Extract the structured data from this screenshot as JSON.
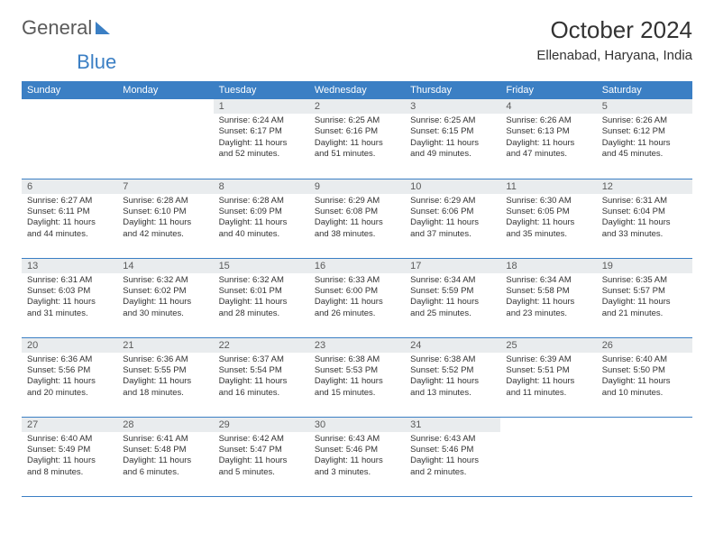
{
  "logo": {
    "part1": "General",
    "part2": "Blue"
  },
  "title": "October 2024",
  "location": "Ellenabad, Haryana, India",
  "colors": {
    "header_bg": "#3b7fc4",
    "header_text": "#ffffff",
    "daynum_bg": "#e9ecee",
    "border": "#3b7fc4",
    "text": "#333333"
  },
  "weekdays": [
    "Sunday",
    "Monday",
    "Tuesday",
    "Wednesday",
    "Thursday",
    "Friday",
    "Saturday"
  ],
  "blanks_before": 2,
  "days": [
    {
      "n": 1,
      "sr": "6:24 AM",
      "ss": "6:17 PM",
      "dl": "11 hours and 52 minutes."
    },
    {
      "n": 2,
      "sr": "6:25 AM",
      "ss": "6:16 PM",
      "dl": "11 hours and 51 minutes."
    },
    {
      "n": 3,
      "sr": "6:25 AM",
      "ss": "6:15 PM",
      "dl": "11 hours and 49 minutes."
    },
    {
      "n": 4,
      "sr": "6:26 AM",
      "ss": "6:13 PM",
      "dl": "11 hours and 47 minutes."
    },
    {
      "n": 5,
      "sr": "6:26 AM",
      "ss": "6:12 PM",
      "dl": "11 hours and 45 minutes."
    },
    {
      "n": 6,
      "sr": "6:27 AM",
      "ss": "6:11 PM",
      "dl": "11 hours and 44 minutes."
    },
    {
      "n": 7,
      "sr": "6:28 AM",
      "ss": "6:10 PM",
      "dl": "11 hours and 42 minutes."
    },
    {
      "n": 8,
      "sr": "6:28 AM",
      "ss": "6:09 PM",
      "dl": "11 hours and 40 minutes."
    },
    {
      "n": 9,
      "sr": "6:29 AM",
      "ss": "6:08 PM",
      "dl": "11 hours and 38 minutes."
    },
    {
      "n": 10,
      "sr": "6:29 AM",
      "ss": "6:06 PM",
      "dl": "11 hours and 37 minutes."
    },
    {
      "n": 11,
      "sr": "6:30 AM",
      "ss": "6:05 PM",
      "dl": "11 hours and 35 minutes."
    },
    {
      "n": 12,
      "sr": "6:31 AM",
      "ss": "6:04 PM",
      "dl": "11 hours and 33 minutes."
    },
    {
      "n": 13,
      "sr": "6:31 AM",
      "ss": "6:03 PM",
      "dl": "11 hours and 31 minutes."
    },
    {
      "n": 14,
      "sr": "6:32 AM",
      "ss": "6:02 PM",
      "dl": "11 hours and 30 minutes."
    },
    {
      "n": 15,
      "sr": "6:32 AM",
      "ss": "6:01 PM",
      "dl": "11 hours and 28 minutes."
    },
    {
      "n": 16,
      "sr": "6:33 AM",
      "ss": "6:00 PM",
      "dl": "11 hours and 26 minutes."
    },
    {
      "n": 17,
      "sr": "6:34 AM",
      "ss": "5:59 PM",
      "dl": "11 hours and 25 minutes."
    },
    {
      "n": 18,
      "sr": "6:34 AM",
      "ss": "5:58 PM",
      "dl": "11 hours and 23 minutes."
    },
    {
      "n": 19,
      "sr": "6:35 AM",
      "ss": "5:57 PM",
      "dl": "11 hours and 21 minutes."
    },
    {
      "n": 20,
      "sr": "6:36 AM",
      "ss": "5:56 PM",
      "dl": "11 hours and 20 minutes."
    },
    {
      "n": 21,
      "sr": "6:36 AM",
      "ss": "5:55 PM",
      "dl": "11 hours and 18 minutes."
    },
    {
      "n": 22,
      "sr": "6:37 AM",
      "ss": "5:54 PM",
      "dl": "11 hours and 16 minutes."
    },
    {
      "n": 23,
      "sr": "6:38 AM",
      "ss": "5:53 PM",
      "dl": "11 hours and 15 minutes."
    },
    {
      "n": 24,
      "sr": "6:38 AM",
      "ss": "5:52 PM",
      "dl": "11 hours and 13 minutes."
    },
    {
      "n": 25,
      "sr": "6:39 AM",
      "ss": "5:51 PM",
      "dl": "11 hours and 11 minutes."
    },
    {
      "n": 26,
      "sr": "6:40 AM",
      "ss": "5:50 PM",
      "dl": "11 hours and 10 minutes."
    },
    {
      "n": 27,
      "sr": "6:40 AM",
      "ss": "5:49 PM",
      "dl": "11 hours and 8 minutes."
    },
    {
      "n": 28,
      "sr": "6:41 AM",
      "ss": "5:48 PM",
      "dl": "11 hours and 6 minutes."
    },
    {
      "n": 29,
      "sr": "6:42 AM",
      "ss": "5:47 PM",
      "dl": "11 hours and 5 minutes."
    },
    {
      "n": 30,
      "sr": "6:43 AM",
      "ss": "5:46 PM",
      "dl": "11 hours and 3 minutes."
    },
    {
      "n": 31,
      "sr": "6:43 AM",
      "ss": "5:46 PM",
      "dl": "11 hours and 2 minutes."
    }
  ],
  "labels": {
    "sunrise": "Sunrise:",
    "sunset": "Sunset:",
    "daylight": "Daylight:"
  }
}
